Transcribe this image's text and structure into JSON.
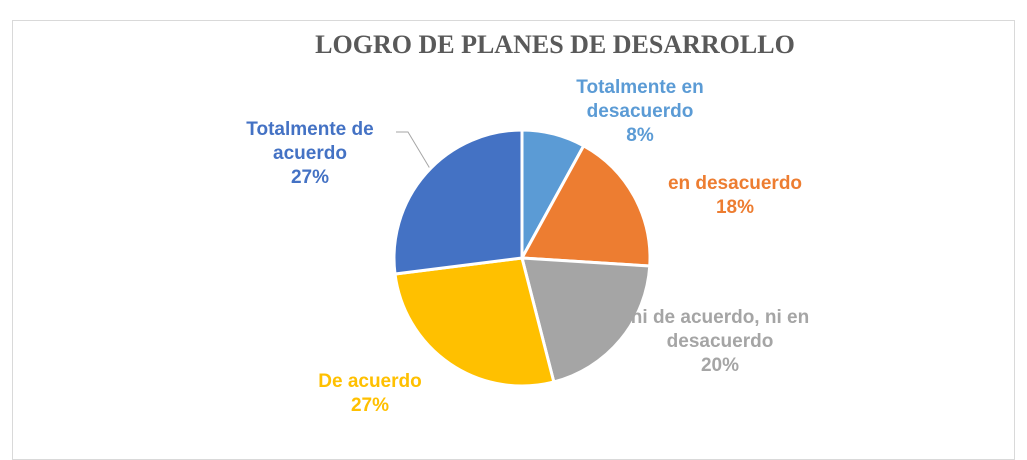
{
  "chart_data": {
    "type": "pie",
    "title": "LOGRO DE PLANES DE DESARROLLO",
    "categories": [
      "Totalmente en desacuerdo",
      "en desacuerdo",
      "ni de acuerdo, ni en desacuerdo",
      "De acuerdo",
      "Totalmente de acuerdo"
    ],
    "values": [
      8,
      18,
      20,
      27,
      27
    ],
    "value_labels": [
      "8%",
      "18%",
      "20%",
      "27%",
      "27%"
    ],
    "colors": [
      "#5B9BD5",
      "#ED7D31",
      "#A5A5A5",
      "#FFC000",
      "#4472C4"
    ]
  }
}
